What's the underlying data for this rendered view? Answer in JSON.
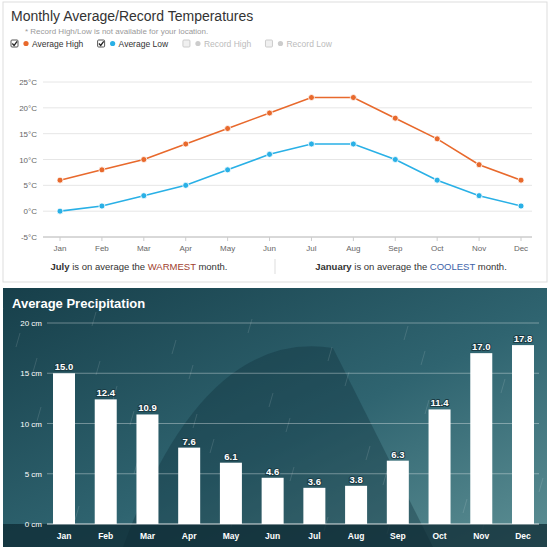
{
  "chart_data": [
    {
      "type": "line",
      "title": "Monthly Average/Record Temperatures",
      "subtitle": "* Record High/Low is not available for your location.",
      "categories": [
        "Jan",
        "Feb",
        "Mar",
        "Apr",
        "May",
        "Jun",
        "Jul",
        "Aug",
        "Sep",
        "Oct",
        "Nov",
        "Dec"
      ],
      "series": [
        {
          "name": "Average High",
          "color": "#e8692c",
          "values": [
            6,
            8,
            10,
            13,
            16,
            19,
            22,
            22,
            18,
            14,
            9,
            6
          ]
        },
        {
          "name": "Average Low",
          "color": "#29b0e6",
          "values": [
            0,
            1,
            3,
            5,
            8,
            11,
            13,
            13,
            10,
            6,
            3,
            1
          ]
        },
        {
          "name": "Record High",
          "color": "#cccccc",
          "values": [
            null,
            null,
            null,
            null,
            null,
            null,
            null,
            null,
            null,
            null,
            null,
            null
          ]
        },
        {
          "name": "Record Low",
          "color": "#cccccc",
          "values": [
            null,
            null,
            null,
            null,
            null,
            null,
            null,
            null,
            null,
            null,
            null,
            null
          ]
        }
      ],
      "ylim": [
        -5,
        25
      ],
      "yticks": [
        {
          "value": -5,
          "label": "-5°C"
        },
        {
          "value": 0,
          "label": "0°C"
        },
        {
          "value": 5,
          "label": "5°C"
        },
        {
          "value": 10,
          "label": "10°C"
        },
        {
          "value": 15,
          "label": "15°C"
        },
        {
          "value": 20,
          "label": "20°C"
        },
        {
          "value": 25,
          "label": "25°C"
        }
      ],
      "grid": true,
      "marker": "circle",
      "legend": "top-left",
      "annotations": [
        "July is on average the WARMEST month.",
        "January is on average the COOLEST month."
      ]
    },
    {
      "type": "bar",
      "title": "Average Precipitation",
      "categories": [
        "Jan",
        "Feb",
        "Mar",
        "Apr",
        "May",
        "Jun",
        "Jul",
        "Aug",
        "Sep",
        "Oct",
        "Nov",
        "Dec"
      ],
      "values": [
        15.0,
        12.4,
        10.9,
        7.6,
        6.1,
        4.6,
        3.6,
        3.8,
        6.3,
        11.4,
        17.0,
        17.8
      ],
      "value_labels": [
        "15.0",
        "12.4",
        "10.9",
        "7.6",
        "6.1",
        "4.6",
        "3.6",
        "3.8",
        "6.3",
        "11.4",
        "17.0",
        "17.8"
      ],
      "color": "#ffffff",
      "ylim": [
        0,
        20
      ],
      "yticks": [
        {
          "value": 0,
          "label": "0 cm"
        },
        {
          "value": 5,
          "label": "5 cm"
        },
        {
          "value": 10,
          "label": "10 cm"
        },
        {
          "value": 15,
          "label": "15 cm"
        },
        {
          "value": 20,
          "label": "20 cm"
        }
      ],
      "grid": true,
      "data_labels": true
    }
  ]
}
